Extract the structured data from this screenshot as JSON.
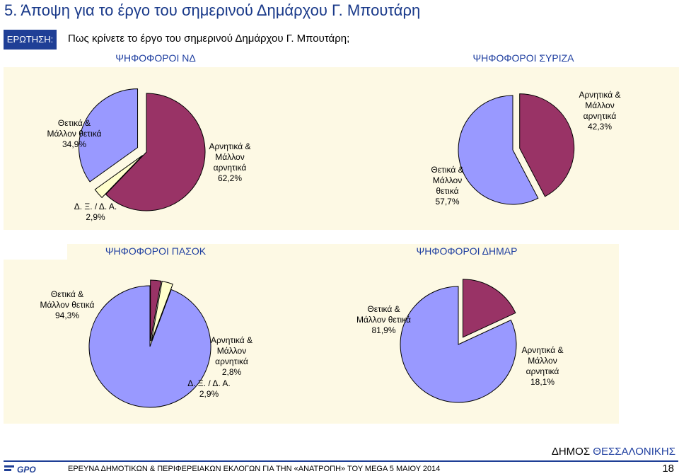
{
  "header": {
    "title": "5.  Άποψη για το έργο του σημερινού Δημάρχου Γ. Μπουτάρη",
    "question_label": "ΕΡΩΤΗΣΗ:",
    "question_text": "Πως κρίνετε το έργο του σημερινού Δημάρχου Γ. Μπουτάρη;"
  },
  "colors": {
    "positive": "#9999ff",
    "negative": "#993366",
    "dk": "#ffffcc",
    "panel_bg": "#fdf9e4",
    "accent": "#1f3f96"
  },
  "chart_data": [
    {
      "type": "pie",
      "title": "ΨΗΦΟΦΟΡΟΙ ΝΔ",
      "slices": [
        {
          "label": "Θετικά & Μάλλον θετικά",
          "value": 34.9,
          "value_text": "34,9%"
        },
        {
          "label": "Αρνητικά & Μάλλον αρνητικά",
          "value": 62.2,
          "value_text": "62,2%"
        },
        {
          "label": "Δ. Ξ. / Δ. Α.",
          "value": 2.9,
          "value_text": "2,9%"
        }
      ]
    },
    {
      "type": "pie",
      "title": "ΨΗΦΟΦΟΡΟΙ ΣΥΡΙΖΑ",
      "slices": [
        {
          "label": "Θετικά & Μάλλον θετικά",
          "value": 57.7,
          "value_text": "57,7%"
        },
        {
          "label": "Αρνητικά & Μάλλον αρνητικά",
          "value": 42.3,
          "value_text": "42,3%"
        }
      ]
    },
    {
      "type": "pie",
      "title": "ΨΗΦΟΦΟΡΟΙ ΠΑΣΟΚ",
      "slices": [
        {
          "label": "Θετικά & Μάλλον θετικά",
          "value": 94.3,
          "value_text": "94,3%"
        },
        {
          "label": "Αρνητικά & Μάλλον αρνητικά",
          "value": 2.8,
          "value_text": "2,8%"
        },
        {
          "label": "Δ. Ξ. / Δ. Α.",
          "value": 2.9,
          "value_text": "2,9%"
        }
      ]
    },
    {
      "type": "pie",
      "title": "ΨΗΦΟΦΟΡΟΙ ΔΗΜΑΡ",
      "slices": [
        {
          "label": "Θετικά & Μάλλον θετικά",
          "value": 81.9,
          "value_text": "81,9%"
        },
        {
          "label": "Αρνητικά & Μάλλον αρνητικά",
          "value": 18.1,
          "value_text": "18,1%"
        }
      ]
    }
  ],
  "labels": {
    "nd_pos": "Θετικά &\nΜάλλον θετικά\n34,9%",
    "nd_neg": "Αρνητικά &\nΜάλλον\nαρνητικά\n62,2%",
    "nd_dk": "Δ. Ξ. / Δ. Α.\n2,9%",
    "syr_pos": "Θετικά &\nΜάλλον\nθετικά\n57,7%",
    "syr_neg": "Αρνητικά &\nΜάλλον\nαρνητικά\n42,3%",
    "pasok_pos": "Θετικά &\nΜάλλον θετικά\n94,3%",
    "pasok_neg": "Αρνητικά &\nΜάλλον\nαρνητικά\n2,8%",
    "pasok_dk": "Δ. Ξ. / Δ. Α.\n2,9%",
    "dimar_pos": "Θετικά &\nΜάλλον θετικά\n81,9%",
    "dimar_neg": "Αρνητικά &\nΜάλλον\nαρνητικά\n18,1%"
  },
  "footer": {
    "logo": "GPO",
    "text": "ΕΡΕΥΝΑ ΔΗΜΟΤΙΚΩΝ & ΠΕΡΙΦΕΡΕΙΑΚΩΝ ΕΚΛΟΓΩΝ ΓΙΑ ΤΗΝ «ΑΝΑΤΡΟΠΗ» ΤΟΥ MEGA  5 ΜΑΙΟΥ 2014",
    "municipality_prefix": "ΔΗΜΟΣ ",
    "municipality_name": "ΘΕΣΣΑΛΟΝΙΚΗΣ",
    "page_number": "18"
  }
}
